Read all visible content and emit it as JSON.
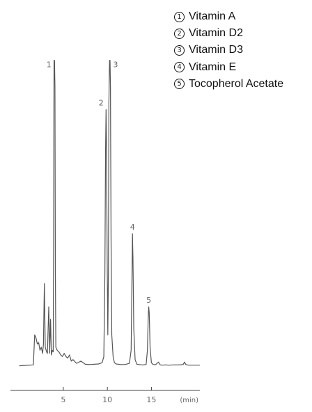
{
  "chart_data": {
    "type": "line",
    "xlabel": "(min)",
    "ylabel": "",
    "xlim": [
      -1,
      20.5
    ],
    "ylim": [
      -0.03,
      1.0
    ],
    "xticks": [
      {
        "value": 5,
        "label": "5"
      },
      {
        "value": 10,
        "label": "10"
      },
      {
        "value": 15,
        "label": "15"
      }
    ],
    "grid": false,
    "legend_position": "top-right",
    "colors": {
      "line": "#555555",
      "axis": "#444444",
      "text": "#666666",
      "legend": "#111111"
    },
    "legend": [
      {
        "marker": "1",
        "label": "Vitamin A"
      },
      {
        "marker": "2",
        "label": "Vitamin D2"
      },
      {
        "marker": "3",
        "label": "Vitamin D3"
      },
      {
        "marker": "4",
        "label": "Vitamin E"
      },
      {
        "marker": "5",
        "label": "Tocopherol Acetate"
      }
    ],
    "peaks": [
      {
        "label": "1",
        "rt": 4.0,
        "height": 0.985
      },
      {
        "label": "2",
        "rt": 9.85,
        "height": 0.826
      },
      {
        "label": "3",
        "rt": 10.3,
        "height": 0.985
      },
      {
        "label": "4",
        "rt": 12.85,
        "height": 0.426
      },
      {
        "label": "5",
        "rt": 14.7,
        "height": 0.19
      }
    ],
    "series": [
      {
        "x": [
          0,
          1.6,
          1.75,
          1.9,
          2.05,
          2.2,
          2.35,
          2.5,
          2.65,
          2.75,
          2.85,
          2.95,
          3.1,
          3.2,
          3.35,
          3.45,
          3.55,
          3.65,
          3.75,
          3.85,
          3.9,
          3.95,
          4.0,
          4.05,
          4.1,
          4.15,
          4.3,
          4.5,
          4.7,
          4.9,
          5.1,
          5.3,
          5.5,
          5.7,
          5.9,
          6.1,
          6.5,
          7.0,
          7.5,
          8.0,
          8.5,
          9.0,
          9.4,
          9.6,
          9.72,
          9.8,
          9.85,
          9.9,
          9.98,
          10.05,
          10.12,
          10.18,
          10.25,
          10.3,
          10.35,
          10.42,
          10.5,
          10.65,
          10.8,
          11.0,
          11.5,
          12.0,
          12.5,
          12.7,
          12.8,
          12.85,
          12.9,
          13.0,
          13.15,
          13.35,
          13.6,
          14.0,
          14.4,
          14.55,
          14.65,
          14.7,
          14.75,
          14.85,
          15.0,
          15.2,
          15.5,
          15.8,
          16.0,
          16.2,
          16.6,
          17.0,
          17.5,
          18.0,
          18.6,
          18.75,
          18.9,
          19.2,
          20.5
        ],
        "y": [
          0.0,
          0.003,
          0.1,
          0.09,
          0.07,
          0.075,
          0.05,
          0.06,
          0.04,
          0.07,
          0.265,
          0.06,
          0.045,
          0.04,
          0.19,
          0.04,
          0.15,
          0.035,
          0.05,
          0.045,
          0.4,
          0.985,
          0.985,
          0.9,
          0.3,
          0.06,
          0.05,
          0.045,
          0.035,
          0.03,
          0.04,
          0.03,
          0.025,
          0.035,
          0.015,
          0.02,
          0.008,
          0.015,
          0.005,
          0.004,
          0.005,
          0.006,
          0.01,
          0.03,
          0.3,
          0.7,
          0.826,
          0.72,
          0.35,
          0.1,
          0.3,
          0.85,
          0.985,
          0.985,
          0.9,
          0.4,
          0.1,
          0.03,
          0.01,
          0.006,
          0.004,
          0.004,
          0.008,
          0.05,
          0.3,
          0.426,
          0.35,
          0.12,
          0.02,
          0.005,
          0.004,
          0.003,
          0.004,
          0.05,
          0.17,
          0.19,
          0.17,
          0.06,
          0.01,
          0.004,
          0.004,
          0.012,
          0.003,
          0.002,
          0.003,
          0.002,
          0.003,
          0.003,
          0.004,
          0.012,
          0.004,
          0.002,
          0.002
        ]
      }
    ]
  }
}
